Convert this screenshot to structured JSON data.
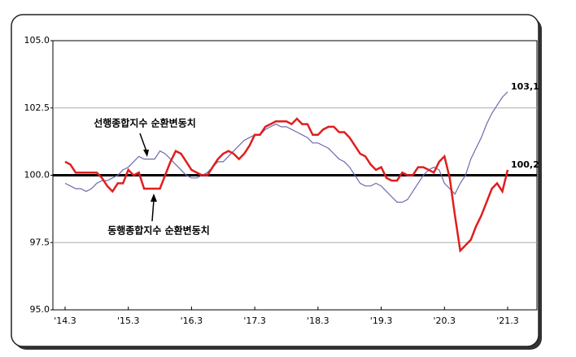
{
  "chart_data": {
    "type": "line",
    "categories": [
      "'14.3",
      null,
      null,
      null,
      null,
      null,
      null,
      null,
      null,
      null,
      null,
      null,
      "'15.3",
      null,
      null,
      null,
      null,
      null,
      null,
      null,
      null,
      null,
      null,
      null,
      "'16.3",
      null,
      null,
      null,
      null,
      null,
      null,
      null,
      null,
      null,
      null,
      null,
      "'17.3",
      null,
      null,
      null,
      null,
      null,
      null,
      null,
      null,
      null,
      null,
      null,
      "'18.3",
      null,
      null,
      null,
      null,
      null,
      null,
      null,
      null,
      null,
      null,
      null,
      "'19.3",
      null,
      null,
      null,
      null,
      null,
      null,
      null,
      null,
      null,
      null,
      null,
      "'20.3",
      null,
      null,
      null,
      null,
      null,
      null,
      null,
      null,
      null,
      null,
      null,
      "'21.3"
    ],
    "series": [
      {
        "name": "선행종합지수 순환변동치",
        "color": "#6b6baf",
        "last_label": "103,1",
        "values": [
          99.7,
          99.6,
          99.5,
          99.5,
          99.4,
          99.5,
          99.7,
          99.8,
          99.8,
          99.9,
          100.0,
          100.2,
          100.3,
          100.5,
          100.7,
          100.6,
          100.6,
          100.6,
          100.9,
          100.8,
          100.6,
          100.4,
          100.2,
          100.0,
          99.9,
          99.9,
          100.0,
          100.1,
          100.3,
          100.5,
          100.5,
          100.7,
          100.9,
          101.1,
          101.3,
          101.4,
          101.5,
          101.5,
          101.7,
          101.8,
          101.9,
          101.8,
          101.8,
          101.7,
          101.6,
          101.5,
          101.4,
          101.2,
          101.2,
          101.1,
          101.0,
          100.8,
          100.6,
          100.5,
          100.3,
          100.0,
          99.7,
          99.6,
          99.6,
          99.7,
          99.6,
          99.4,
          99.2,
          99.0,
          99.0,
          99.1,
          99.4,
          99.7,
          100.0,
          100.2,
          100.3,
          100.2,
          99.7,
          99.5,
          99.3,
          99.7,
          100.0,
          100.6,
          101.0,
          101.4,
          101.9,
          102.3,
          102.6,
          102.9,
          103.1
        ]
      },
      {
        "name": "동행종합지수 순환변동치",
        "color": "#e01e1e",
        "last_label": "100,2",
        "values": [
          100.5,
          100.4,
          100.1,
          100.1,
          100.1,
          100.1,
          100.1,
          99.9,
          99.6,
          99.4,
          99.7,
          99.7,
          100.2,
          100.0,
          100.1,
          99.5,
          99.5,
          99.5,
          99.5,
          100.0,
          100.5,
          100.9,
          100.8,
          100.5,
          100.2,
          100.1,
          100.0,
          100.0,
          100.3,
          100.6,
          100.8,
          100.9,
          100.8,
          100.6,
          100.8,
          101.1,
          101.5,
          101.5,
          101.8,
          101.9,
          102.0,
          102.0,
          102.0,
          101.9,
          102.1,
          101.9,
          101.9,
          101.5,
          101.5,
          101.7,
          101.8,
          101.8,
          101.6,
          101.6,
          101.4,
          101.1,
          100.8,
          100.7,
          100.4,
          100.2,
          100.3,
          99.9,
          99.8,
          99.8,
          100.1,
          100.0,
          100.0,
          100.3,
          100.3,
          100.2,
          100.1,
          100.5,
          100.7,
          99.9,
          98.5,
          97.2,
          97.4,
          97.6,
          98.1,
          98.5,
          99.0,
          99.5,
          99.7,
          99.4,
          100.2
        ]
      }
    ],
    "ylim": [
      95,
      105
    ],
    "yticks": [
      {
        "value": 95,
        "label": "95.0"
      },
      {
        "value": 97.5,
        "label": "97.5"
      },
      {
        "value": 100,
        "label": "100.0"
      },
      {
        "value": 102.5,
        "label": "102.5"
      },
      {
        "value": 105,
        "label": "105.0"
      }
    ],
    "grid": true,
    "reference_line": 100
  }
}
